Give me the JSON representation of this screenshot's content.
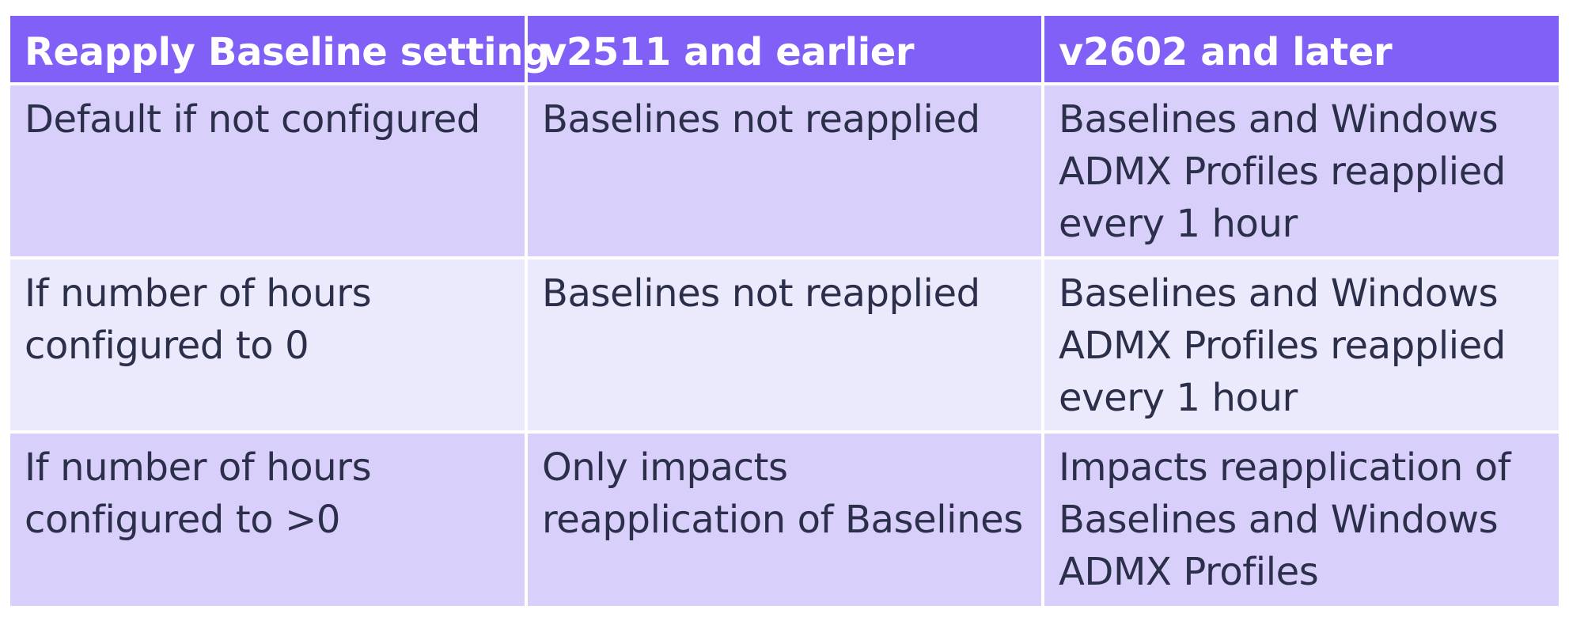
{
  "table": {
    "headers": [
      "Reapply Baseline setting",
      "v2511 and earlier",
      "v2602 and later"
    ],
    "rows": [
      {
        "setting": "Default if not configured",
        "v2511": "Baselines not reapplied",
        "v2602": "Baselines and Windows ADMX Profiles reapplied every 1 hour"
      },
      {
        "setting": "If number of hours configured to 0",
        "v2511": "Baselines not reapplied",
        "v2602": "Baselines and Windows ADMX Profiles reapplied every 1 hour"
      },
      {
        "setting": "If number of hours configured to >0",
        "v2511": "Only impacts reapplication of Baselines",
        "v2602": "Impacts reapplication of Baselines and Windows ADMX Profiles"
      }
    ]
  },
  "colors": {
    "header_bg": "#8060f7",
    "row_dark_bg": "#d8d0fb",
    "row_light_bg": "#ebe9fc",
    "text": "#2b2f4a"
  }
}
